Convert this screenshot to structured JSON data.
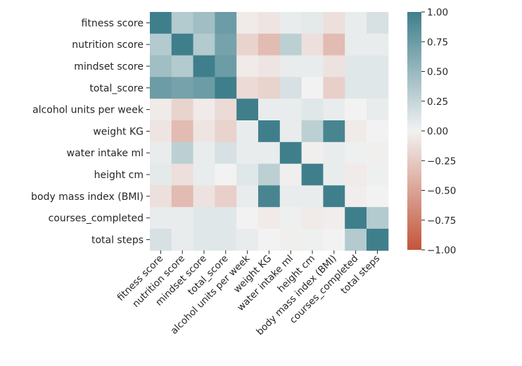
{
  "chart_data": {
    "type": "heatmap",
    "title": "",
    "labels": [
      "fitness score",
      "nutrition score",
      "mindset score",
      "total_score",
      "alcohol units per week",
      "weight KG",
      "water intake ml",
      "height cm",
      "body mass index (BMI)",
      "courses_completed",
      "total steps"
    ],
    "matrix": [
      [
        1.0,
        0.35,
        0.45,
        0.75,
        -0.05,
        -0.08,
        0.05,
        0.08,
        -0.12,
        0.05,
        0.15
      ],
      [
        0.35,
        1.0,
        0.35,
        0.7,
        -0.2,
        -0.35,
        0.3,
        -0.12,
        -0.35,
        0.05,
        0.05
      ],
      [
        0.45,
        0.35,
        1.0,
        0.75,
        -0.05,
        -0.08,
        0.05,
        0.05,
        -0.1,
        0.1,
        0.1
      ],
      [
        0.75,
        0.7,
        0.75,
        1.0,
        -0.15,
        -0.2,
        0.15,
        0.0,
        -0.22,
        0.1,
        0.1
      ],
      [
        -0.05,
        -0.2,
        -0.05,
        -0.15,
        1.0,
        0.05,
        0.05,
        0.1,
        0.05,
        0.0,
        0.05
      ],
      [
        -0.08,
        -0.35,
        -0.08,
        -0.2,
        0.05,
        1.0,
        0.05,
        0.3,
        0.95,
        -0.05,
        0.0
      ],
      [
        0.05,
        0.3,
        0.05,
        0.15,
        0.05,
        0.05,
        1.0,
        -0.02,
        0.05,
        0.02,
        -0.02
      ],
      [
        0.08,
        -0.12,
        0.05,
        0.0,
        0.1,
        0.3,
        -0.02,
        1.0,
        0.05,
        -0.05,
        0.02
      ],
      [
        -0.12,
        -0.35,
        -0.1,
        -0.22,
        0.05,
        0.95,
        0.05,
        0.05,
        1.0,
        -0.03,
        0.0
      ],
      [
        0.05,
        0.05,
        0.1,
        0.1,
        0.0,
        -0.05,
        0.02,
        -0.05,
        -0.03,
        1.0,
        0.35
      ],
      [
        0.15,
        0.05,
        0.1,
        0.1,
        0.05,
        0.0,
        -0.02,
        0.02,
        0.0,
        0.35,
        1.0
      ]
    ],
    "vmin": -1.0,
    "vmax": 1.0,
    "colormap": "diverging",
    "color_low": "#c3553a",
    "color_mid": "#f2f2f2",
    "color_high": "#3f7f8c",
    "colorbar_ticks": [
      "1.00",
      "0.75",
      "0.50",
      "0.25",
      "0.00",
      "−0.25",
      "−0.50",
      "−0.75",
      "−1.00"
    ],
    "colorbar_tick_values": [
      1.0,
      0.75,
      0.5,
      0.25,
      0.0,
      -0.25,
      -0.5,
      -0.75,
      -1.0
    ],
    "legend": "right",
    "grid": false
  }
}
